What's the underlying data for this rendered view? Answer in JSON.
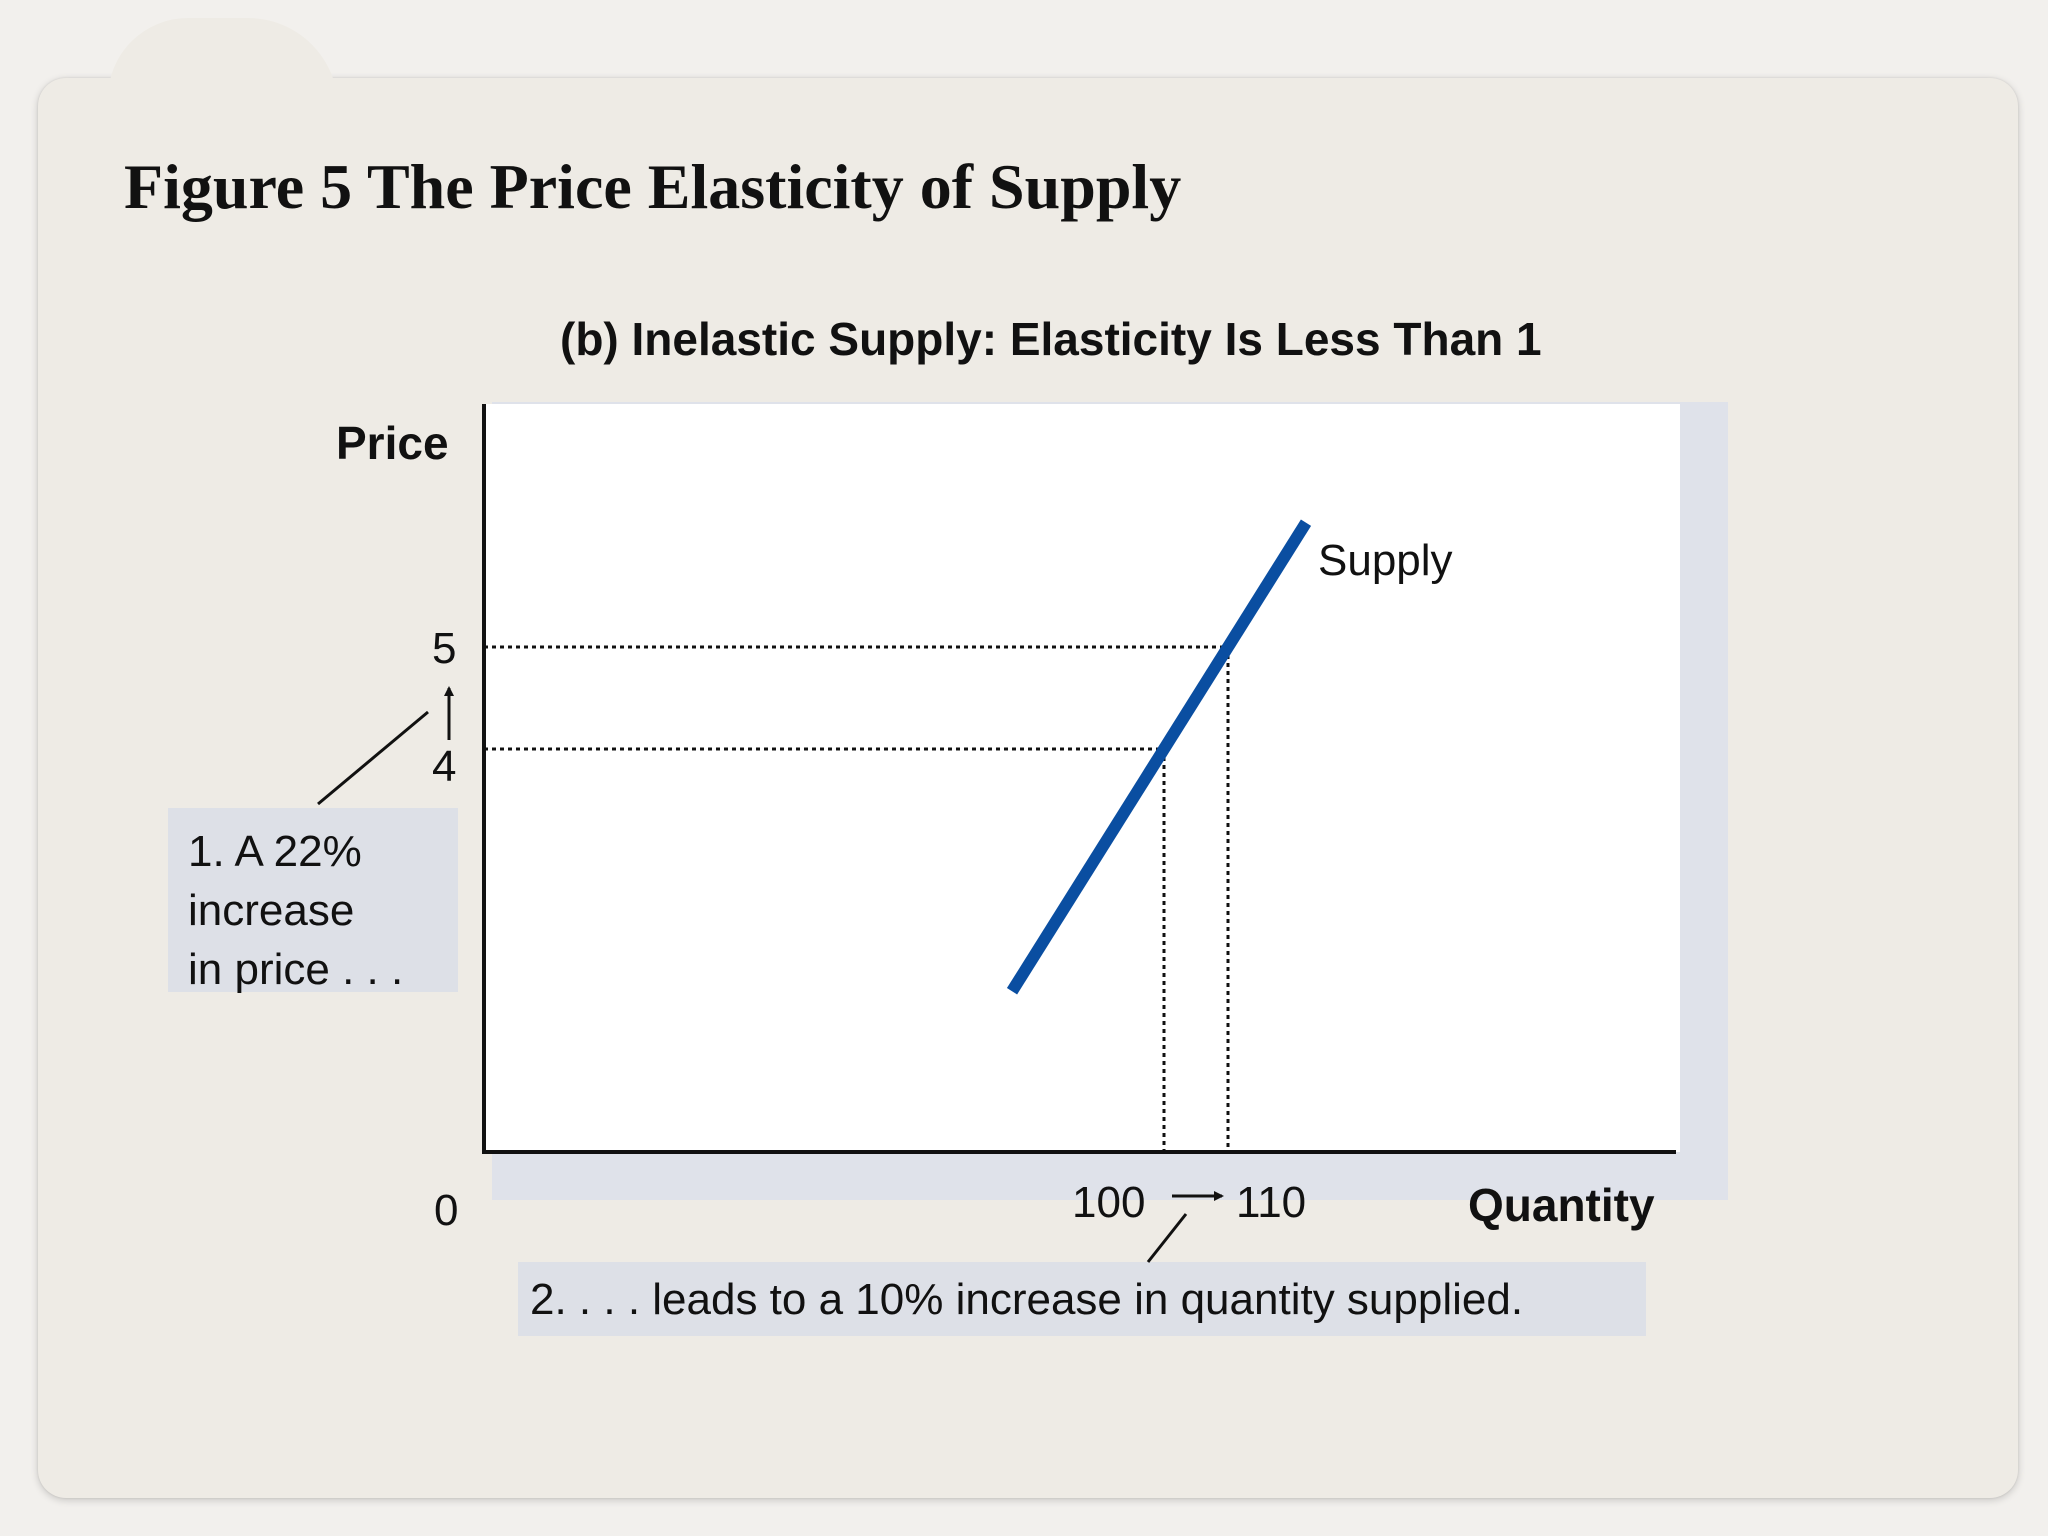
{
  "figure": {
    "title": "Figure 5 The Price Elasticity of Supply"
  },
  "chart_data": {
    "type": "line",
    "title": "(b) Inelastic Supply: Elasticity Is Less Than 1",
    "xlabel": "Quantity",
    "ylabel": "Price",
    "origin_label": "0",
    "x_ticks": [
      "100",
      "110"
    ],
    "y_ticks": [
      "4",
      "5"
    ],
    "series": [
      {
        "name": "Supply",
        "color": "#0a4ea1",
        "points": [
          {
            "x": 100,
            "y": 4
          },
          {
            "x": 110,
            "y": 5
          }
        ]
      }
    ],
    "reference_points": [
      {
        "x": 100,
        "y": 4
      },
      {
        "x": 110,
        "y": 5
      }
    ],
    "grid": false,
    "annotations": {
      "price_change": [
        "1. A 22%",
        "increase",
        "in price . . ."
      ],
      "quantity_change": "2. . . . leads to a 10% increase in quantity supplied."
    }
  }
}
